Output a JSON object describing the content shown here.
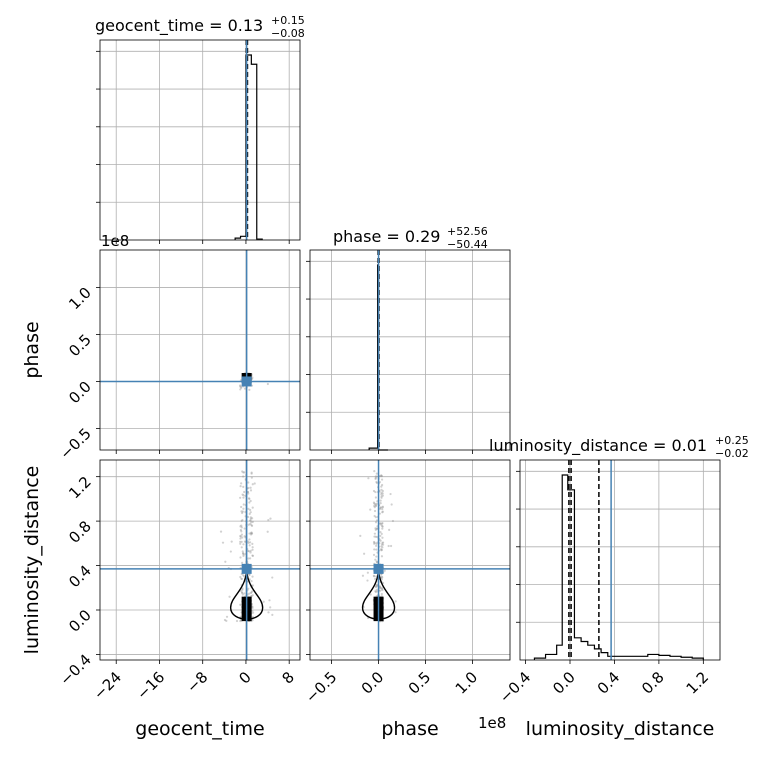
{
  "chart_data": {
    "type": "corner",
    "parameters": [
      {
        "name": "geocent_time",
        "title_text": "geocent_time = 0.13",
        "title_plus": "+0.15",
        "title_minus": "−0.08",
        "median": 0.13,
        "plus": 0.15,
        "minus": 0.08,
        "truth": 0.13,
        "range": [
          -27,
          10
        ],
        "ticks": [
          -24,
          -16,
          -8,
          0,
          8
        ],
        "tick_labels": [
          "−24",
          "−16",
          "−8",
          "0",
          "8"
        ],
        "axis_label": "geocent_time",
        "hist_bins": [
          -2,
          -1,
          0,
          1,
          2,
          3
        ],
        "hist_counts": [
          0.01,
          0.02,
          1.0,
          0.95,
          0.005
        ],
        "quantile_lines": [
          0.05,
          0.13,
          0.28
        ]
      },
      {
        "name": "phase",
        "title_text": "phase = 0.29",
        "title_plus": "+52.56",
        "title_minus": "−50.44",
        "median": 0.29,
        "plus": 52.56,
        "minus": 50.44,
        "truth": 0.0,
        "range": [
          -0.73,
          1.4
        ],
        "ticks": [
          -0.5,
          0.0,
          0.5,
          1.0
        ],
        "tick_labels": [
          "−0.5",
          "0.0",
          "0.5",
          "1.0"
        ],
        "axis_label": "phase",
        "offset_label": "1e8",
        "hist_bins": [
          -0.1,
          -0.01,
          0.0,
          0.1
        ],
        "hist_counts": [
          0.01,
          1.0,
          0.0
        ],
        "quantile_lines": [
          -0.005,
          0.0,
          0.005
        ]
      },
      {
        "name": "luminosity_distance",
        "title_text": "luminosity_distance = 0.01",
        "title_plus": "+0.25",
        "title_minus": "−0.02",
        "median": 0.01,
        "plus": 0.25,
        "minus": 0.02,
        "truth": 0.37,
        "range": [
          -0.45,
          1.35
        ],
        "ticks": [
          -0.4,
          0.0,
          0.4,
          0.8,
          1.2
        ],
        "tick_labels": [
          "−0.4",
          "0.0",
          "0.4",
          "0.8",
          "1.2"
        ],
        "axis_label": "luminosity_distance",
        "offset_label": "1e8",
        "hist_bins": [
          -0.32,
          -0.22,
          -0.12,
          -0.07,
          -0.02,
          0.04,
          0.1,
          0.16,
          0.22,
          0.28,
          0.34,
          0.7,
          0.8,
          0.9,
          1.0,
          1.1,
          1.2
        ],
        "hist_counts": [
          0.01,
          0.03,
          0.08,
          1.0,
          0.92,
          0.12,
          0.1,
          0.08,
          0.06,
          0.04,
          0.02,
          0.03,
          0.025,
          0.02,
          0.015,
          0.01
        ],
        "quantile_lines": [
          -0.01,
          0.01,
          0.26
        ]
      }
    ],
    "truth_color": "#4682b4",
    "hist_color": "#000000",
    "scatter_color": "#999999"
  }
}
